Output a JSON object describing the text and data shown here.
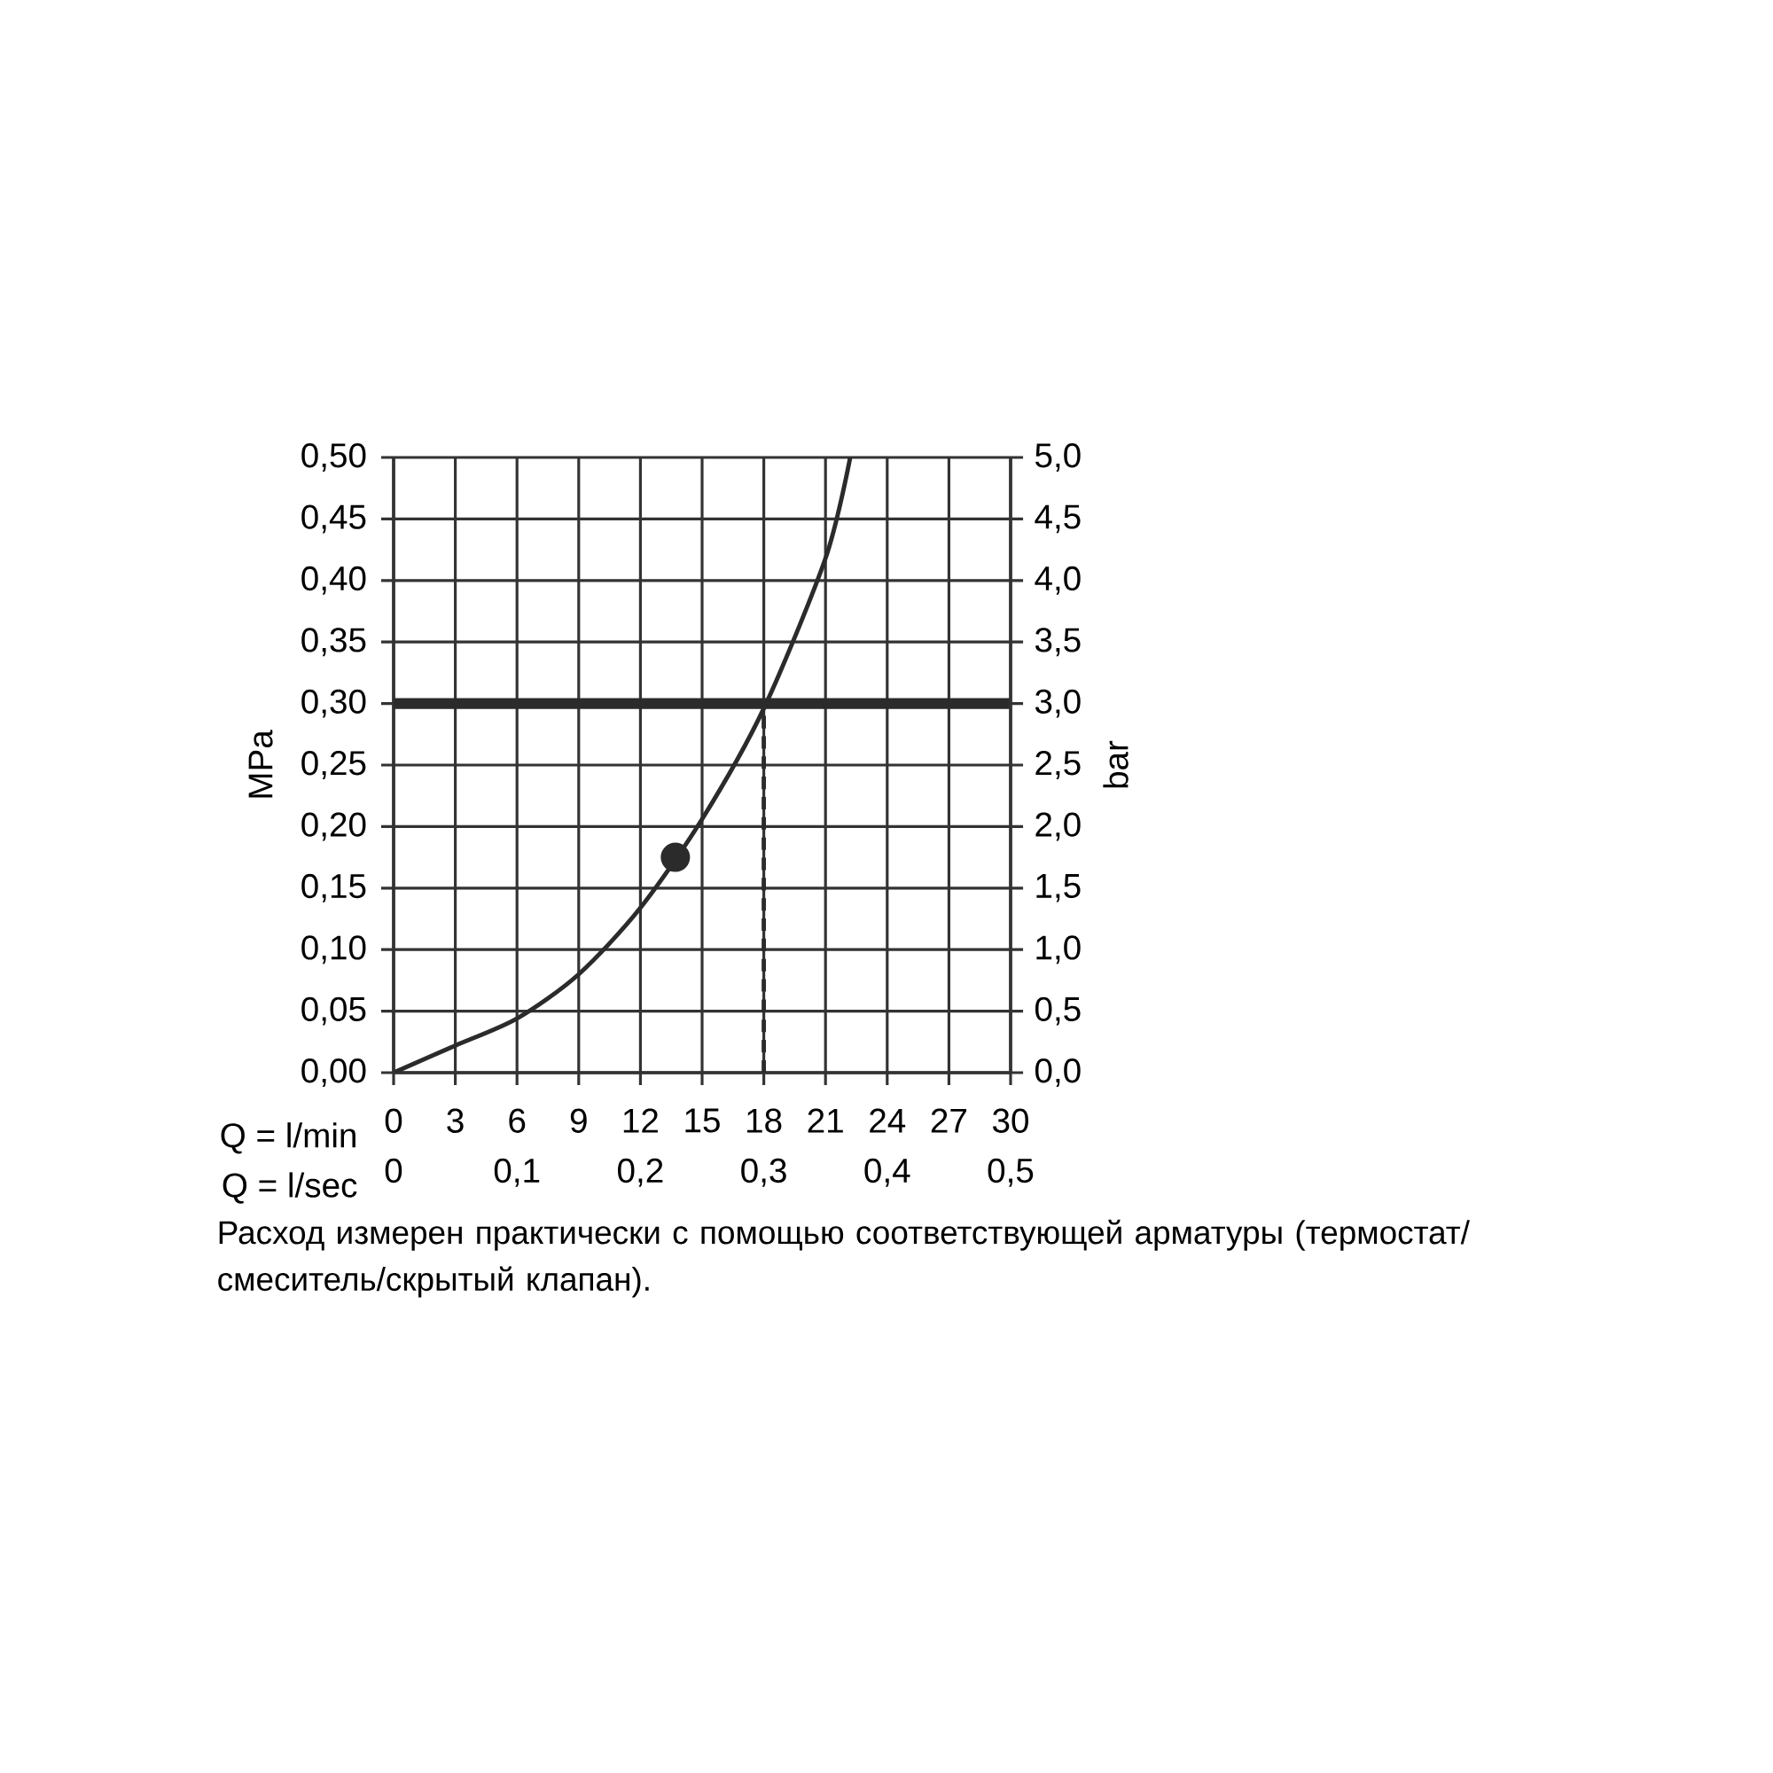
{
  "chart_data": {
    "type": "line",
    "xlabel": "Q = l/min",
    "x2label": "Q = l/sec",
    "ylabel": "MPa",
    "y2label": "bar",
    "xlim": [
      0,
      30
    ],
    "xticks": [
      0,
      3,
      6,
      9,
      12,
      15,
      18,
      21,
      24,
      27,
      30
    ],
    "x2lim": [
      0,
      0.5
    ],
    "x2ticks": [
      0,
      {
        "value": 0.1,
        "label": "0,1"
      },
      {
        "value": 0.2,
        "label": "0,2"
      },
      {
        "value": 0.3,
        "label": "0,3"
      },
      {
        "value": 0.4,
        "label": "0,4"
      },
      {
        "value": 0.5,
        "label": "0,5"
      }
    ],
    "ylim": [
      0,
      0.5
    ],
    "yticks": [
      {
        "value": 0,
        "label": "0,00"
      },
      {
        "value": 0.05,
        "label": "0,05"
      },
      {
        "value": 0.1,
        "label": "0,10"
      },
      {
        "value": 0.15,
        "label": "0,15"
      },
      {
        "value": 0.2,
        "label": "0,20"
      },
      {
        "value": 0.25,
        "label": "0,25"
      },
      {
        "value": 0.3,
        "label": "0,30"
      },
      {
        "value": 0.35,
        "label": "0,35"
      },
      {
        "value": 0.4,
        "label": "0,40"
      },
      {
        "value": 0.45,
        "label": "0,45"
      },
      {
        "value": 0.5,
        "label": "0,50"
      }
    ],
    "y2lim": [
      0,
      5
    ],
    "y2ticks": [
      {
        "value": 0,
        "label": "0,0"
      },
      {
        "value": 0.5,
        "label": "0,5"
      },
      {
        "value": 1,
        "label": "1,0"
      },
      {
        "value": 1.5,
        "label": "1,5"
      },
      {
        "value": 2,
        "label": "2,0"
      },
      {
        "value": 2.5,
        "label": "2,5"
      },
      {
        "value": 3,
        "label": "3,0"
      },
      {
        "value": 3.5,
        "label": "3,5"
      },
      {
        "value": 4,
        "label": "4,0"
      },
      {
        "value": 4.5,
        "label": "4,5"
      },
      {
        "value": 5,
        "label": "5,0"
      }
    ],
    "grid": true,
    "series": [
      {
        "color": "#2b2b2b",
        "x": [
          0,
          3,
          6,
          9,
          12,
          15,
          18,
          21,
          22.2
        ],
        "values": [
          0,
          0.022,
          0.044,
          0.08,
          0.134,
          0.206,
          0.296,
          0.418,
          0.5
        ]
      },
      {
        "type": "line",
        "color": "#2b2b2b",
        "line_style": "dashed",
        "x": [
          18,
          18
        ],
        "values": [
          0,
          0.3
        ]
      },
      {
        "type": "scatter",
        "color": "#2b2b2b",
        "marker": "circle",
        "x": [
          13.7
        ],
        "values": [
          0.175
        ]
      }
    ],
    "ref_lines": [
      {
        "axis": "y",
        "value": 0.3,
        "color": "#2b2b2b"
      }
    ],
    "annotations": [
      "Расход измерен практически с помощью соответствующей арматуры (термостат/ смеситель/скрытый клапан)."
    ]
  }
}
